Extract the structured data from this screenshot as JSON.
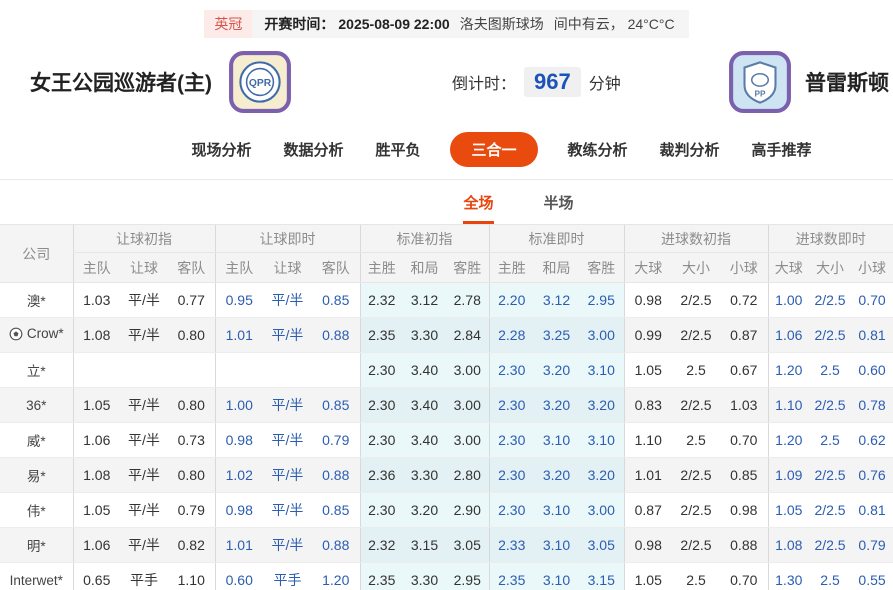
{
  "colors": {
    "accent": "#e94a0e",
    "live_blue": "#2b5db2",
    "countdown_blue": "#1d53b8",
    "cyan_bg": "#eaf8fa",
    "badge_red": "#d9534b",
    "badge_bg": "#fcebe9"
  },
  "top_bar": {
    "league": "英冠",
    "kickoff_label": "开赛时间：",
    "kickoff_time": "2025-08-09 22:00",
    "venue": "洛夫图斯球场",
    "weather": "间中有云， 24°C°C"
  },
  "match": {
    "home_team": "女王公园巡游者(主)",
    "away_team": "普雷斯顿",
    "home_logo_text": "QPR",
    "away_logo_text": "PP",
    "countdown_label": "倒计时：",
    "countdown_value": "967",
    "countdown_unit": "分钟"
  },
  "nav": {
    "items": [
      {
        "label": "现场分析",
        "active": false
      },
      {
        "label": "数据分析",
        "active": false
      },
      {
        "label": "胜平负",
        "active": false
      },
      {
        "label": "三合一",
        "active": true
      },
      {
        "label": "教练分析",
        "active": false
      },
      {
        "label": "裁判分析",
        "active": false
      },
      {
        "label": "高手推荐",
        "active": false
      }
    ]
  },
  "subtabs": {
    "items": [
      {
        "label": "全场",
        "active": true
      },
      {
        "label": "半场",
        "active": false
      }
    ]
  },
  "table": {
    "company_header": "公司",
    "groups": [
      {
        "label": "让球初指",
        "cols": [
          "主队",
          "让球",
          "客队"
        ]
      },
      {
        "label": "让球即时",
        "cols": [
          "主队",
          "让球",
          "客队"
        ]
      },
      {
        "label": "标准初指",
        "cols": [
          "主胜",
          "和局",
          "客胜"
        ]
      },
      {
        "label": "标准即时",
        "cols": [
          "主胜",
          "和局",
          "客胜"
        ]
      },
      {
        "label": "进球数初指",
        "cols": [
          "大球",
          "大小",
          "小球"
        ]
      },
      {
        "label": "进球数即时",
        "cols": [
          "大球",
          "大小",
          "小球"
        ]
      }
    ],
    "rows": [
      {
        "company": "澳*",
        "icon": null,
        "cells": [
          "1.03",
          "平/半",
          "0.77",
          "0.95",
          "平/半",
          "0.85",
          "2.32",
          "3.12",
          "2.78",
          "2.20",
          "3.12",
          "2.95",
          "0.98",
          "2/2.5",
          "0.72",
          "1.00",
          "2/2.5",
          "0.70"
        ]
      },
      {
        "company": "Crow*",
        "icon": "soccer-ball",
        "cells": [
          "1.08",
          "平/半",
          "0.80",
          "1.01",
          "平/半",
          "0.88",
          "2.35",
          "3.30",
          "2.84",
          "2.28",
          "3.25",
          "3.00",
          "0.99",
          "2/2.5",
          "0.87",
          "1.06",
          "2/2.5",
          "0.81"
        ]
      },
      {
        "company": "立*",
        "icon": null,
        "cells": [
          "",
          "",
          "",
          "",
          "",
          "",
          "2.30",
          "3.40",
          "3.00",
          "2.30",
          "3.20",
          "3.10",
          "1.05",
          "2.5",
          "0.67",
          "1.20",
          "2.5",
          "0.60"
        ]
      },
      {
        "company": "36*",
        "icon": null,
        "cells": [
          "1.05",
          "平/半",
          "0.80",
          "1.00",
          "平/半",
          "0.85",
          "2.30",
          "3.40",
          "3.00",
          "2.30",
          "3.20",
          "3.20",
          "0.83",
          "2/2.5",
          "1.03",
          "1.10",
          "2/2.5",
          "0.78"
        ]
      },
      {
        "company": "威*",
        "icon": null,
        "cells": [
          "1.06",
          "平/半",
          "0.73",
          "0.98",
          "平/半",
          "0.79",
          "2.30",
          "3.40",
          "3.00",
          "2.30",
          "3.10",
          "3.10",
          "1.10",
          "2.5",
          "0.70",
          "1.20",
          "2.5",
          "0.62"
        ]
      },
      {
        "company": "易*",
        "icon": null,
        "cells": [
          "1.08",
          "平/半",
          "0.80",
          "1.02",
          "平/半",
          "0.88",
          "2.36",
          "3.30",
          "2.80",
          "2.30",
          "3.20",
          "3.20",
          "1.01",
          "2/2.5",
          "0.85",
          "1.09",
          "2/2.5",
          "0.76"
        ]
      },
      {
        "company": "伟*",
        "icon": null,
        "cells": [
          "1.05",
          "平/半",
          "0.79",
          "0.98",
          "平/半",
          "0.85",
          "2.30",
          "3.20",
          "2.90",
          "2.30",
          "3.10",
          "3.00",
          "0.87",
          "2/2.5",
          "0.98",
          "1.05",
          "2/2.5",
          "0.81"
        ]
      },
      {
        "company": "明*",
        "icon": null,
        "cells": [
          "1.06",
          "平/半",
          "0.82",
          "1.01",
          "平/半",
          "0.88",
          "2.32",
          "3.15",
          "3.05",
          "2.33",
          "3.10",
          "3.05",
          "0.98",
          "2/2.5",
          "0.88",
          "1.08",
          "2/2.5",
          "0.79"
        ]
      },
      {
        "company": "Interwet*",
        "icon": null,
        "cells": [
          "0.65",
          "平手",
          "1.10",
          "0.60",
          "平手",
          "1.20",
          "2.35",
          "3.30",
          "2.95",
          "2.35",
          "3.10",
          "3.15",
          "1.05",
          "2.5",
          "0.70",
          "1.30",
          "2.5",
          "0.55"
        ]
      }
    ]
  }
}
